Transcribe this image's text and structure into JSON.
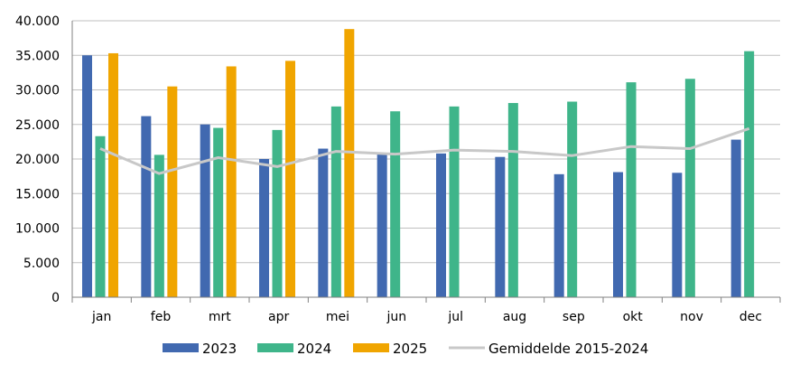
{
  "chart_data": {
    "type": "bar",
    "categories": [
      "jan",
      "feb",
      "mrt",
      "apr",
      "mei",
      "jun",
      "jul",
      "aug",
      "sep",
      "okt",
      "nov",
      "dec"
    ],
    "series": [
      {
        "name": "2023",
        "type": "bar",
        "color": "#4169b0",
        "values": [
          35000,
          26200,
          25000,
          20000,
          21500,
          20800,
          20800,
          20300,
          17800,
          18100,
          18000,
          22800
        ]
      },
      {
        "name": "2024",
        "type": "bar",
        "color": "#3fb58a",
        "values": [
          23300,
          20600,
          24500,
          24200,
          27600,
          26900,
          27600,
          28100,
          28300,
          31100,
          31600,
          35600
        ]
      },
      {
        "name": "2025",
        "type": "bar",
        "color": "#f0a500",
        "values": [
          35300,
          30500,
          33400,
          34200,
          38800,
          null,
          null,
          null,
          null,
          null,
          null,
          null
        ]
      },
      {
        "name": "Gemiddelde 2015-2024",
        "type": "line",
        "color": "#c8c8c8",
        "values": [
          21500,
          17900,
          20200,
          18900,
          21100,
          20700,
          21300,
          21100,
          20500,
          21800,
          21500,
          24400
        ]
      }
    ],
    "y_ticks": [
      "0",
      "5.000",
      "10.000",
      "15.000",
      "20.000",
      "25.000",
      "30.000",
      "35.000",
      "40.000"
    ],
    "ylim": [
      0,
      40000
    ],
    "grid": true,
    "legend_position": "bottom",
    "title": "",
    "xlabel": "",
    "ylabel": ""
  }
}
